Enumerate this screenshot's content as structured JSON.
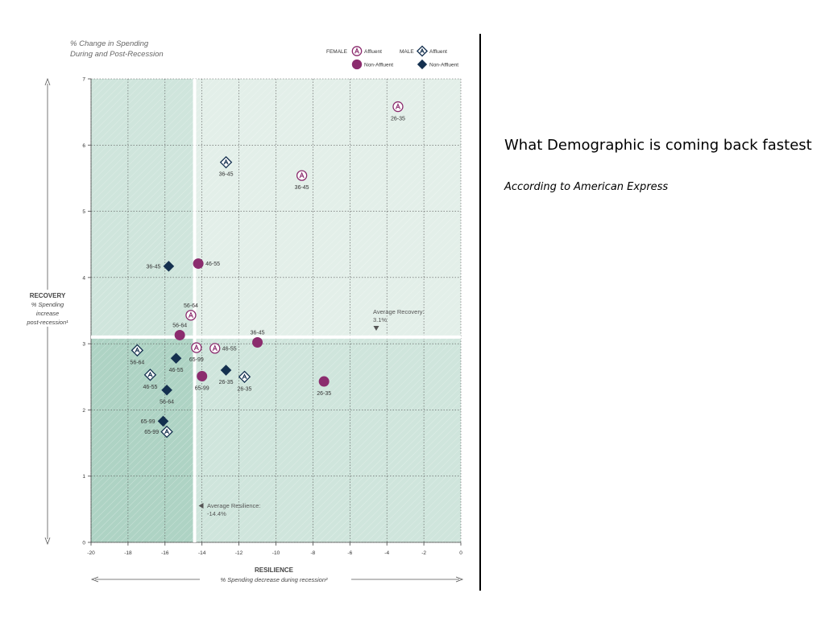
{
  "slide": {
    "title": "What Demographic is coming back fastest",
    "subtitle": "According to American Express"
  },
  "chart_data": {
    "type": "scatter",
    "title": "% Change in Spending\nDuring and Post-Recession",
    "xlabel": "RESILIENCE",
    "xsublabel": "% Spending decrease during recession²",
    "ylabel": [
      "RECOVERY",
      "% Spending",
      "increase",
      "post-recession¹"
    ],
    "xlim": [
      -20,
      0
    ],
    "ylim": [
      0,
      7
    ],
    "xticks": [
      -20,
      -18,
      -16,
      -14,
      -12,
      -10,
      -8,
      -6,
      -4,
      -2,
      0
    ],
    "yticks": [
      0,
      1,
      2,
      3,
      4,
      5,
      6,
      7
    ],
    "grid": true,
    "legend": {
      "placement": "top-right",
      "female_label": "FEMALE",
      "male_label": "MALE",
      "affluent_label": "Affluent",
      "non_affluent_label": "Non-Affluent"
    },
    "reference_lines": {
      "avg_resilience": {
        "value": -14.4,
        "label": "Average Resilience:",
        "value_label": "-14.4%"
      },
      "avg_recovery": {
        "value": 3.1,
        "label": "Average Recovery:",
        "value_label": "3.1%"
      }
    },
    "colors": {
      "female": "#8b2c6e",
      "male": "#14304f",
      "bg_light": "#e3efe9",
      "bg_mid": "#cfe5dc",
      "bg_dark": "#aed3c4"
    },
    "points": [
      {
        "gender": "female",
        "affluence": "affluent",
        "age": "26-35",
        "x": -3.4,
        "y": 6.58,
        "label_pos": "below"
      },
      {
        "gender": "female",
        "affluence": "affluent",
        "age": "36-45",
        "x": -8.6,
        "y": 5.54,
        "label_pos": "below"
      },
      {
        "gender": "female",
        "affluence": "affluent",
        "age": "56-64",
        "x": -14.6,
        "y": 3.43,
        "label_pos": "above"
      },
      {
        "gender": "female",
        "affluence": "affluent",
        "age": "65-99",
        "x": -14.3,
        "y": 2.94,
        "label_pos": "below"
      },
      {
        "gender": "female",
        "affluence": "affluent",
        "age": "46-55",
        "x": -13.3,
        "y": 2.93,
        "label_pos": "right"
      },
      {
        "gender": "female",
        "affluence": "non-affluent",
        "age": "46-55",
        "x": -14.2,
        "y": 4.21,
        "label_pos": "right"
      },
      {
        "gender": "female",
        "affluence": "non-affluent",
        "age": "56-64",
        "x": -15.2,
        "y": 3.13,
        "label_pos": "above"
      },
      {
        "gender": "female",
        "affluence": "non-affluent",
        "age": "36-45",
        "x": -11.0,
        "y": 3.02,
        "label_pos": "above"
      },
      {
        "gender": "female",
        "affluence": "non-affluent",
        "age": "65-99",
        "x": -14.0,
        "y": 2.51,
        "label_pos": "below"
      },
      {
        "gender": "female",
        "affluence": "non-affluent",
        "age": "26-35",
        "x": -7.4,
        "y": 2.43,
        "label_pos": "below"
      },
      {
        "gender": "male",
        "affluence": "affluent",
        "age": "36-45",
        "x": -12.7,
        "y": 5.74,
        "label_pos": "below"
      },
      {
        "gender": "male",
        "affluence": "affluent",
        "age": "56-64",
        "x": -17.5,
        "y": 2.9,
        "label_pos": "below"
      },
      {
        "gender": "male",
        "affluence": "affluent",
        "age": "46-55",
        "x": -16.8,
        "y": 2.53,
        "label_pos": "below"
      },
      {
        "gender": "male",
        "affluence": "affluent",
        "age": "26-35",
        "x": -11.7,
        "y": 2.5,
        "label_pos": "below"
      },
      {
        "gender": "male",
        "affluence": "affluent",
        "age": "65-99",
        "x": -15.9,
        "y": 1.67,
        "label_pos": "left"
      },
      {
        "gender": "male",
        "affluence": "non-affluent",
        "age": "36-45",
        "x": -15.8,
        "y": 4.17,
        "label_pos": "left"
      },
      {
        "gender": "male",
        "affluence": "non-affluent",
        "age": "46-55",
        "x": -15.4,
        "y": 2.78,
        "label_pos": "below"
      },
      {
        "gender": "male",
        "affluence": "non-affluent",
        "age": "26-35",
        "x": -12.7,
        "y": 2.6,
        "label_pos": "below"
      },
      {
        "gender": "male",
        "affluence": "non-affluent",
        "age": "56-64",
        "x": -15.9,
        "y": 2.3,
        "label_pos": "below"
      },
      {
        "gender": "male",
        "affluence": "non-affluent",
        "age": "65-99",
        "x": -16.1,
        "y": 1.83,
        "label_pos": "left"
      }
    ]
  }
}
